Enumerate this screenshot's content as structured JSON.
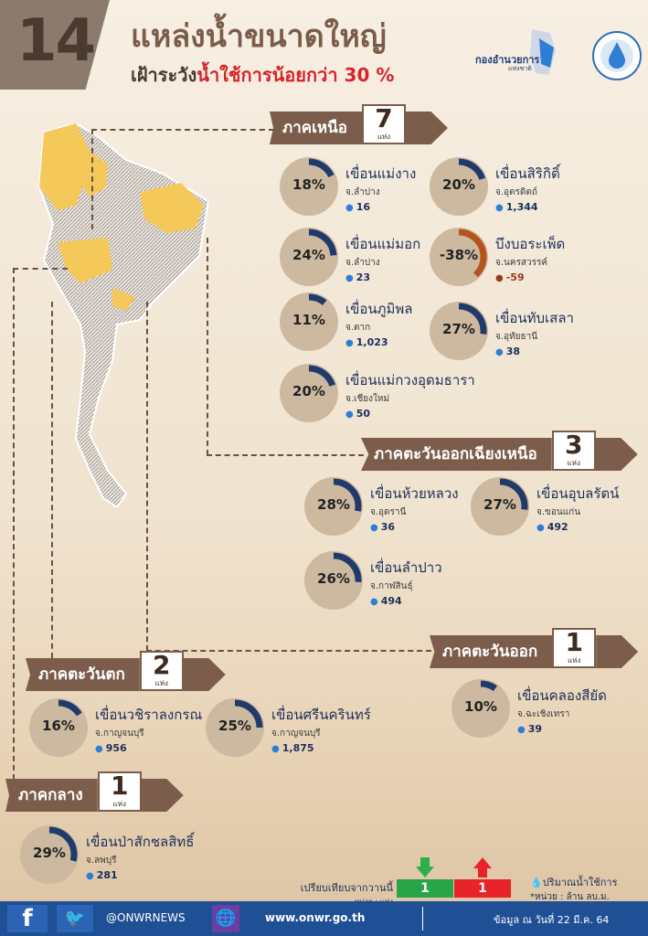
{
  "header": {
    "count": "14",
    "title": "แหล่งน้ำขนาดใหญ่",
    "subtitle_prefix": "เฝ้าระวัง",
    "subtitle_highlight": "น้ำใช้การน้อยกว่า 30 %",
    "logo_text": "กองอำนวยการ",
    "logo_subtext": "แห่งชาติ"
  },
  "regions": {
    "north": {
      "label": "ภาคเหนือ",
      "count": "7",
      "unit": "แห่ง"
    },
    "northeast": {
      "label": "ภาคตะวันออกเฉียงเหนือ",
      "count": "3",
      "unit": "แห่ง"
    },
    "east": {
      "label": "ภาคตะวันออก",
      "count": "1",
      "unit": "แห่ง"
    },
    "west": {
      "label": "ภาคตะวันตก",
      "count": "2",
      "unit": "แห่ง"
    },
    "central": {
      "label": "ภาคกลาง",
      "count": "1",
      "unit": "แห่ง"
    }
  },
  "dams": [
    {
      "name": "เขื่อนแม่งาง",
      "province": "จ.ลำปาง",
      "percent": 18,
      "percent_label": "18%",
      "volume": "16"
    },
    {
      "name": "เขื่อนสิริกิติ์",
      "province": "จ.อุตรดิตถ์",
      "percent": 20,
      "percent_label": "20%",
      "volume": "1,344"
    },
    {
      "name": "เขื่อนแม่มอก",
      "province": "จ.ลำปาง",
      "percent": 24,
      "percent_label": "24%",
      "volume": "23"
    },
    {
      "name": "บึงบอระเพ็ด",
      "province": "จ.นครสวรรค์",
      "percent": -38,
      "percent_label": "-38%",
      "volume": "-59"
    },
    {
      "name": "เขื่อนภูมิพล",
      "province": "จ.ตาก",
      "percent": 11,
      "percent_label": "11%",
      "volume": "1,023"
    },
    {
      "name": "เขื่อนทับเสลา",
      "province": "จ.อุทัยธานี",
      "percent": 27,
      "percent_label": "27%",
      "volume": "38"
    },
    {
      "name": "เขื่อนแม่กวงอุดมธารา",
      "province": "จ.เชียงใหม่",
      "percent": 20,
      "percent_label": "20%",
      "volume": "50"
    },
    {
      "name": "เขื่อนห้วยหลวง",
      "province": "จ.อุดรานี",
      "percent": 28,
      "percent_label": "28%",
      "volume": "36"
    },
    {
      "name": "เขื่อนอุบลรัตน์",
      "province": "จ.ขอนแก่น",
      "percent": 27,
      "percent_label": "27%",
      "volume": "492"
    },
    {
      "name": "เขื่อนลำปาว",
      "province": "จ.กาฬสินธุ์",
      "percent": 26,
      "percent_label": "26%",
      "volume": "494"
    },
    {
      "name": "เขื่อนคลองสียัด",
      "province": "จ.ฉะเชิงเทรา",
      "percent": 10,
      "percent_label": "10%",
      "volume": "39"
    },
    {
      "name": "เขื่อนวชิราลงกรณ",
      "province": "จ.กาญจนบุรี",
      "percent": 16,
      "percent_label": "16%",
      "volume": "956"
    },
    {
      "name": "เขื่อนศรีนครินทร์",
      "province": "จ.กาญจนบุรี",
      "percent": 25,
      "percent_label": "25%",
      "volume": "1,875"
    },
    {
      "name": "เขื่อนป่าสักชลสิทธิ์",
      "province": "จ.ลพบุรี",
      "percent": 29,
      "percent_label": "29%",
      "volume": "281"
    }
  ],
  "legend": {
    "compare_text": "เปรียบเทียบจากวานนี้",
    "compare_unit": "หน่วย : แห่ง",
    "down_count": "1",
    "up_count": "1",
    "volume_label": "ปริมาณน้ำใช้การ",
    "volume_unit": "*หน่วย : ล้าน ลบ.ม."
  },
  "footer": {
    "handle": "@ONWRNEWS",
    "website": "www.onwr.go.th",
    "date": "ข้อมูล ณ วันที่ 22 มี.ค. 64"
  },
  "colors": {
    "banner": "#7c5c4a",
    "ring": "#1f3a6b",
    "ring_negative": "#b5531f",
    "circle_bg": "#cdb9a0",
    "highlight": "#d8232a",
    "footer": "#1f4f95",
    "map_highlight": "#f5c85a"
  },
  "icons": [
    "facebook-icon",
    "twitter-icon",
    "globe-icon",
    "water-drop-icon",
    "arrow-down-icon",
    "arrow-up-icon"
  ]
}
